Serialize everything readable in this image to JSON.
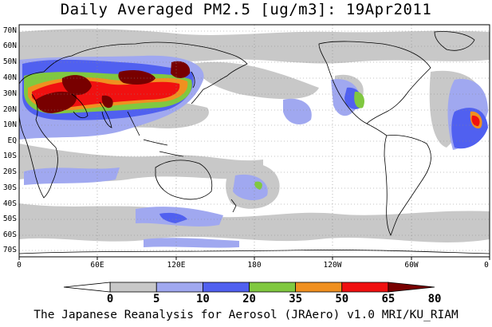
{
  "map": {
    "title": "Daily Averaged PM2.5 [ug/m3]: 19Apr2011",
    "footer": "The Japanese Reanalysis for Aerosol (JRAero) v1.0 MRI/KU_RIAM",
    "lat_labels": [
      "70N",
      "60N",
      "50N",
      "40N",
      "30N",
      "20N",
      "10N",
      "EQ",
      "10S",
      "20S",
      "30S",
      "40S",
      "50S",
      "60S",
      "70S"
    ],
    "lon_labels": [
      "0",
      "60E",
      "120E",
      "180",
      "120W",
      "60W",
      "0"
    ],
    "colorbar": {
      "levels": [
        "0",
        "5",
        "10",
        "20",
        "35",
        "50",
        "65",
        "80"
      ],
      "colors": [
        "#ffffff",
        "#c8c8c8",
        "#a0a8f0",
        "#5060f0",
        "#80c840",
        "#f09020",
        "#f01010",
        "#780000"
      ]
    }
  }
}
